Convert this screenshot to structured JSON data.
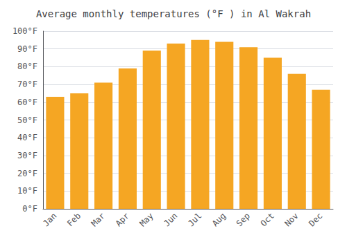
{
  "chart_data": {
    "type": "bar",
    "title": "Average monthly temperatures (°F ) in Al Wakrah",
    "categories": [
      "Jan",
      "Feb",
      "Mar",
      "Apr",
      "May",
      "Jun",
      "Jul",
      "Aug",
      "Sep",
      "Oct",
      "Nov",
      "Dec"
    ],
    "values": [
      63,
      65,
      71,
      79,
      89,
      93,
      95,
      94,
      91,
      85,
      76,
      67
    ],
    "color": "#F5A623",
    "ylim": [
      0,
      100
    ],
    "yticks": [
      {
        "value": 0,
        "label": "0°F"
      },
      {
        "value": 10,
        "label": "10°F"
      },
      {
        "value": 20,
        "label": "20°F"
      },
      {
        "value": 30,
        "label": "30°F"
      },
      {
        "value": 40,
        "label": "40°F"
      },
      {
        "value": 50,
        "label": "50°F"
      },
      {
        "value": 60,
        "label": "60°F"
      },
      {
        "value": 70,
        "label": "70°F"
      },
      {
        "value": 80,
        "label": "80°F"
      },
      {
        "value": 90,
        "label": "90°F"
      },
      {
        "value": 100,
        "label": "100°F"
      }
    ],
    "grid": true
  }
}
